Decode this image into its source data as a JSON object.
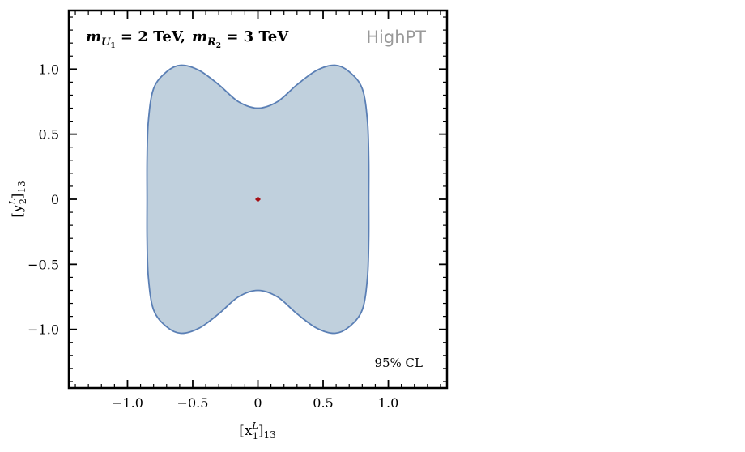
{
  "chart_data": {
    "type": "area",
    "title_parts": {
      "m1": "m",
      "m1_sub": "U",
      "m1_subsub": "1",
      "m1_value": " = 2 TeV,",
      "m2": "m",
      "m2_sub": "R",
      "m2_subsub": "2",
      "m2_value": " = 3 TeV"
    },
    "watermark": "HighPT",
    "annotation": "95% CL",
    "xlabel": {
      "base": "[x",
      "sup": "L",
      "sub": "1",
      "tail": "]",
      "tail_sub": "13"
    },
    "ylabel": {
      "base": "[y",
      "sup": "L",
      "sub": "2",
      "tail": "]",
      "tail_sub": "13"
    },
    "xlim": [
      -1.45,
      1.45
    ],
    "ylim": [
      -1.45,
      1.45
    ],
    "xticks": [
      {
        "value": -1.0,
        "label": "−1.0"
      },
      {
        "value": -0.5,
        "label": "−0.5"
      },
      {
        "value": 0,
        "label": "0"
      },
      {
        "value": 0.5,
        "label": "0.5"
      },
      {
        "value": 1.0,
        "label": "1.0"
      }
    ],
    "yticks": [
      {
        "value": 1.0,
        "label": "1.0"
      },
      {
        "value": 0.5,
        "label": "0.5"
      },
      {
        "value": 0,
        "label": "0"
      },
      {
        "value": -0.5,
        "label": "−0.5"
      },
      {
        "value": -1.0,
        "label": "−1.0"
      }
    ],
    "minor_tick_step": 0.1,
    "region_upper_boundary": [
      {
        "x": -0.85,
        "y": 0.0
      },
      {
        "x": -0.85,
        "y": 0.3
      },
      {
        "x": -0.84,
        "y": 0.6
      },
      {
        "x": -0.8,
        "y": 0.85
      },
      {
        "x": -0.7,
        "y": 0.98
      },
      {
        "x": -0.59,
        "y": 1.03
      },
      {
        "x": -0.45,
        "y": 0.99
      },
      {
        "x": -0.3,
        "y": 0.88
      },
      {
        "x": -0.15,
        "y": 0.75
      },
      {
        "x": 0.0,
        "y": 0.7
      },
      {
        "x": 0.15,
        "y": 0.75
      },
      {
        "x": 0.3,
        "y": 0.88
      },
      {
        "x": 0.45,
        "y": 0.99
      },
      {
        "x": 0.59,
        "y": 1.03
      },
      {
        "x": 0.7,
        "y": 0.98
      },
      {
        "x": 0.8,
        "y": 0.85
      },
      {
        "x": 0.84,
        "y": 0.6
      },
      {
        "x": 0.85,
        "y": 0.3
      },
      {
        "x": 0.85,
        "y": 0.0
      }
    ],
    "symmetry": "region mirrored about y = 0",
    "best_fit_point": {
      "x": 0,
      "y": 0
    },
    "colors": {
      "region_fill": "#c0d0dd",
      "region_edge": "#5a7fb5",
      "point": "#a50f15",
      "watermark": "#999999",
      "axes": "#000000"
    },
    "grid": false,
    "legend": "none"
  }
}
